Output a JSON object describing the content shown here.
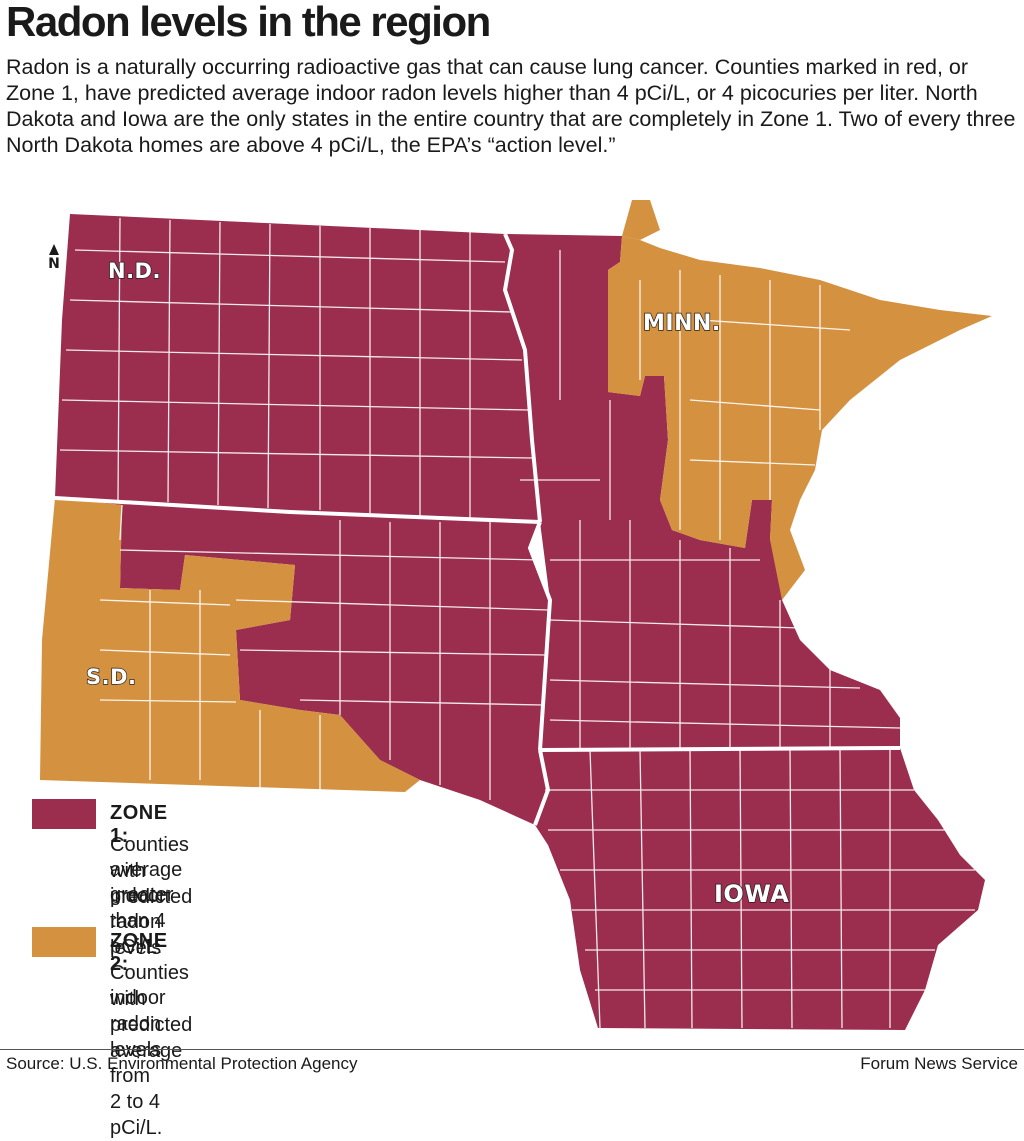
{
  "title": "Radon levels in the region",
  "intro": "Radon is a naturally occurring radioactive gas that can cause lung cancer. Counties marked in red, or Zone 1, have predicted average indoor radon levels higher than 4 pCi/L, or 4 picocuries per liter. North Dakota and Iowa are the only states in the entire country that are completely in Zone 1. Two of every three North Dakota homes are above 4 pCi/L, the EPA’s “action level.”",
  "colors": {
    "zone1": "#9b2d4f",
    "zone2": "#d4913f",
    "border": "#ffffff"
  },
  "north_label": "N",
  "states": {
    "nd": "N.D.",
    "minn": "MINN.",
    "sd": "S.D.",
    "iowa": "IOWA"
  },
  "legend": {
    "zone1": {
      "heading": "ZONE 1:",
      "line1": "Counties with predicted",
      "line2": "average indoor radon levels",
      "line3": "greater than 4 pCi/L."
    },
    "zone2": {
      "heading": "ZONE 2:",
      "line1": "Counties with predicted average",
      "line2": "indoor radon levels from 2 to 4 pCi/L."
    }
  },
  "source": "Source: U.S. Environmental Protection Agency",
  "credit": "Forum News Service"
}
